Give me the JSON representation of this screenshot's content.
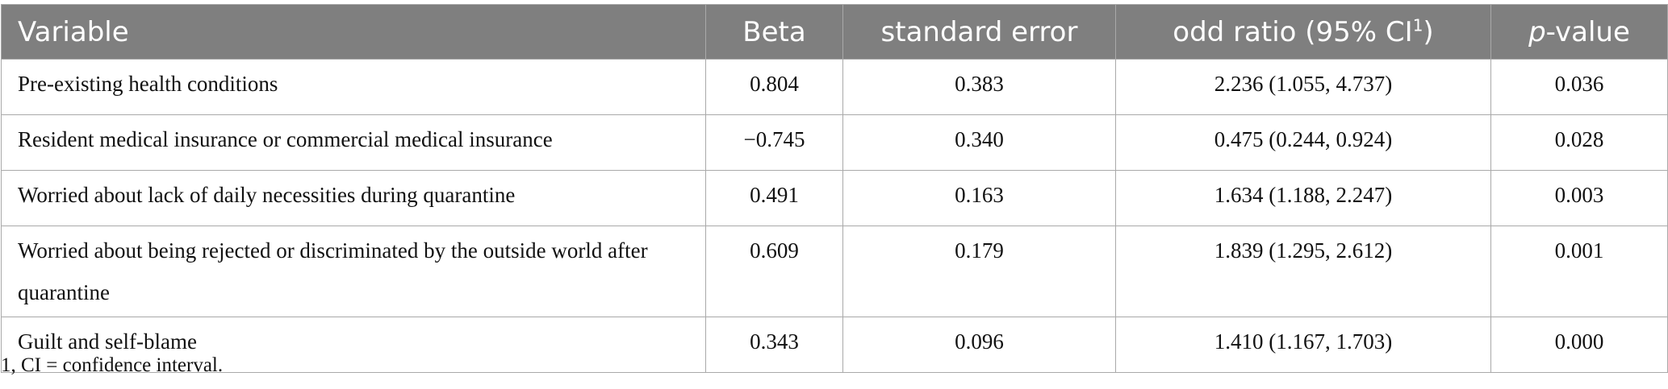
{
  "table": {
    "headers": [
      {
        "text": "Variable"
      },
      {
        "text": "Beta"
      },
      {
        "text": "standard error"
      },
      {
        "text": "odd ratio (95% CI",
        "sup": "1",
        "after": ")"
      },
      {
        "italic": "p",
        "text": "-value"
      }
    ],
    "rows": [
      {
        "variable": "Pre-existing health conditions",
        "beta": "0.804",
        "se": "0.383",
        "or": "2.236 (1.055, 4.737)",
        "p": "0.036"
      },
      {
        "variable": "Resident medical insurance or commercial medical insurance",
        "beta": "−0.745",
        "se": "0.340",
        "or": "0.475 (0.244, 0.924)",
        "p": "0.028"
      },
      {
        "variable": "Worried about lack of daily necessities during quarantine",
        "beta": "0.491",
        "se": "0.163",
        "or": "1.634 (1.188, 2.247)",
        "p": "0.003"
      },
      {
        "variable": "Worried about being rejected or discriminated by the outside world after quarantine",
        "beta": "0.609",
        "se": "0.179",
        "or": "1.839 (1.295, 2.612)",
        "p": "0.001"
      },
      {
        "variable": "Guilt and self-blame",
        "beta": "0.343",
        "se": "0.096",
        "or": "1.410 (1.167, 1.703)",
        "p": "0.000"
      }
    ]
  },
  "footnote": "1, CI = confidence interval."
}
